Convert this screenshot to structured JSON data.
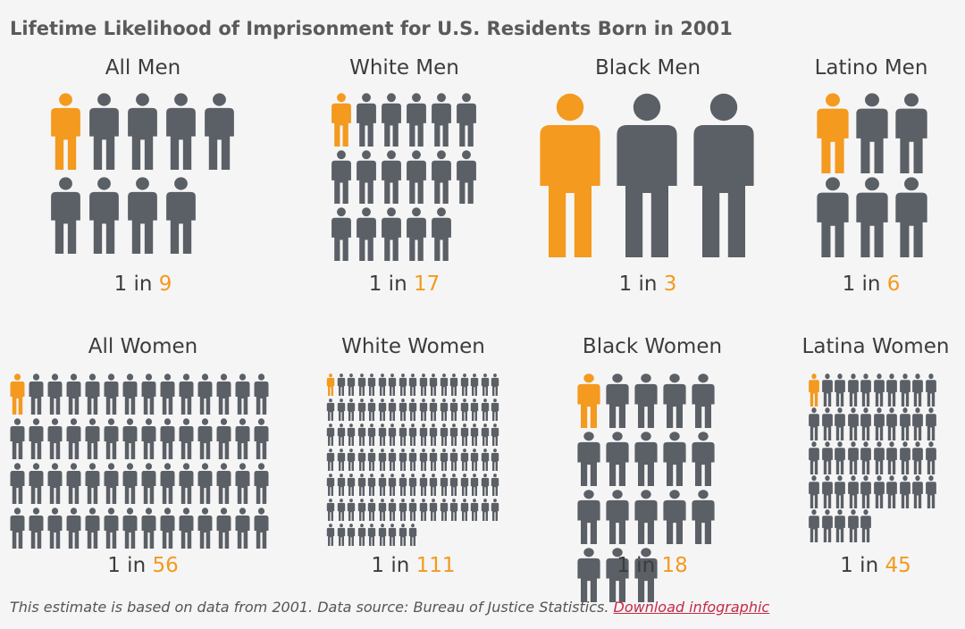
{
  "title": "Lifetime Likelihood of Imprisonment for U.S. Residents Born in 2001",
  "colors": {
    "highlight": "#f39a1f",
    "figure": "#5b5f66",
    "link": "#c42a48"
  },
  "groups": [
    {
      "label": "All Men",
      "prefix": "1 in",
      "value": "9",
      "count": 9
    },
    {
      "label": "White Men",
      "prefix": "1 in",
      "value": "17",
      "count": 17
    },
    {
      "label": "Black Men",
      "prefix": "1 in",
      "value": "3",
      "count": 3
    },
    {
      "label": "Latino Men",
      "prefix": "1 in",
      "value": "6",
      "count": 6
    },
    {
      "label": "All Women",
      "prefix": "1 in",
      "value": "56",
      "count": 56
    },
    {
      "label": "White Women",
      "prefix": "1 in",
      "value": "111",
      "count": 111
    },
    {
      "label": "Black Women",
      "prefix": "1 in",
      "value": "18",
      "count": 18
    },
    {
      "label": "Latina Women",
      "prefix": "1 in",
      "value": "45",
      "count": 45
    }
  ],
  "footer": {
    "text": "This estimate is based on data from 2001. Data source: Bureau of Justice Statistics.",
    "link_text": "Download infographic"
  }
}
